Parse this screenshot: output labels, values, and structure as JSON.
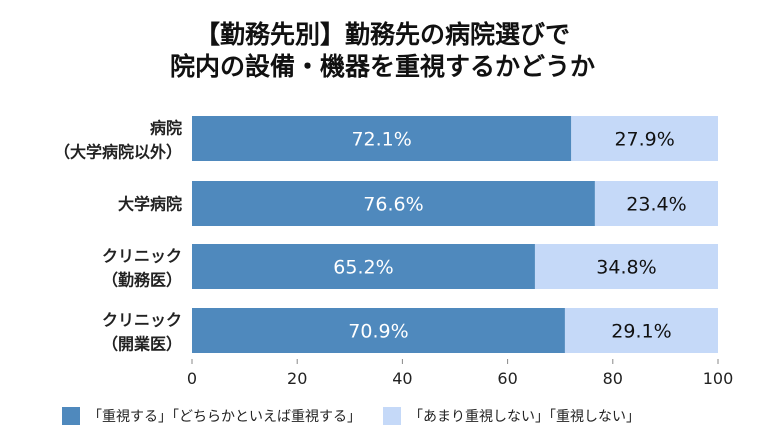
{
  "chart_data": {
    "type": "bar",
    "stacked": true,
    "orientation": "horizontal",
    "title": [
      "【勤務先別】勤務先の病院選びで",
      "院内の設備・機器を重視するかどうか"
    ],
    "categories": [
      [
        "病院",
        "（大学病院以外）"
      ],
      [
        "大学病院"
      ],
      [
        "クリニック",
        "（勤務医）"
      ],
      [
        "クリニック",
        "（開業医）"
      ]
    ],
    "series": [
      {
        "name": "「重視する」「どちらかといえば重視する」",
        "values": [
          72.1,
          76.6,
          65.2,
          70.9
        ],
        "labels": [
          "72.1%",
          "76.6%",
          "65.2%",
          "70.9%"
        ],
        "color": "#4f89bd"
      },
      {
        "name": "「あまり重視しない」「重視しない」",
        "values": [
          27.9,
          23.4,
          34.8,
          29.1
        ],
        "labels": [
          "27.9%",
          "23.4%",
          "34.8%",
          "29.1%"
        ],
        "color": "#c5d9f8"
      }
    ],
    "xlim": [
      0,
      100
    ],
    "xticks": [
      "0",
      "20",
      "40",
      "60",
      "80",
      "100"
    ],
    "grid": false,
    "legend": "bottom"
  }
}
